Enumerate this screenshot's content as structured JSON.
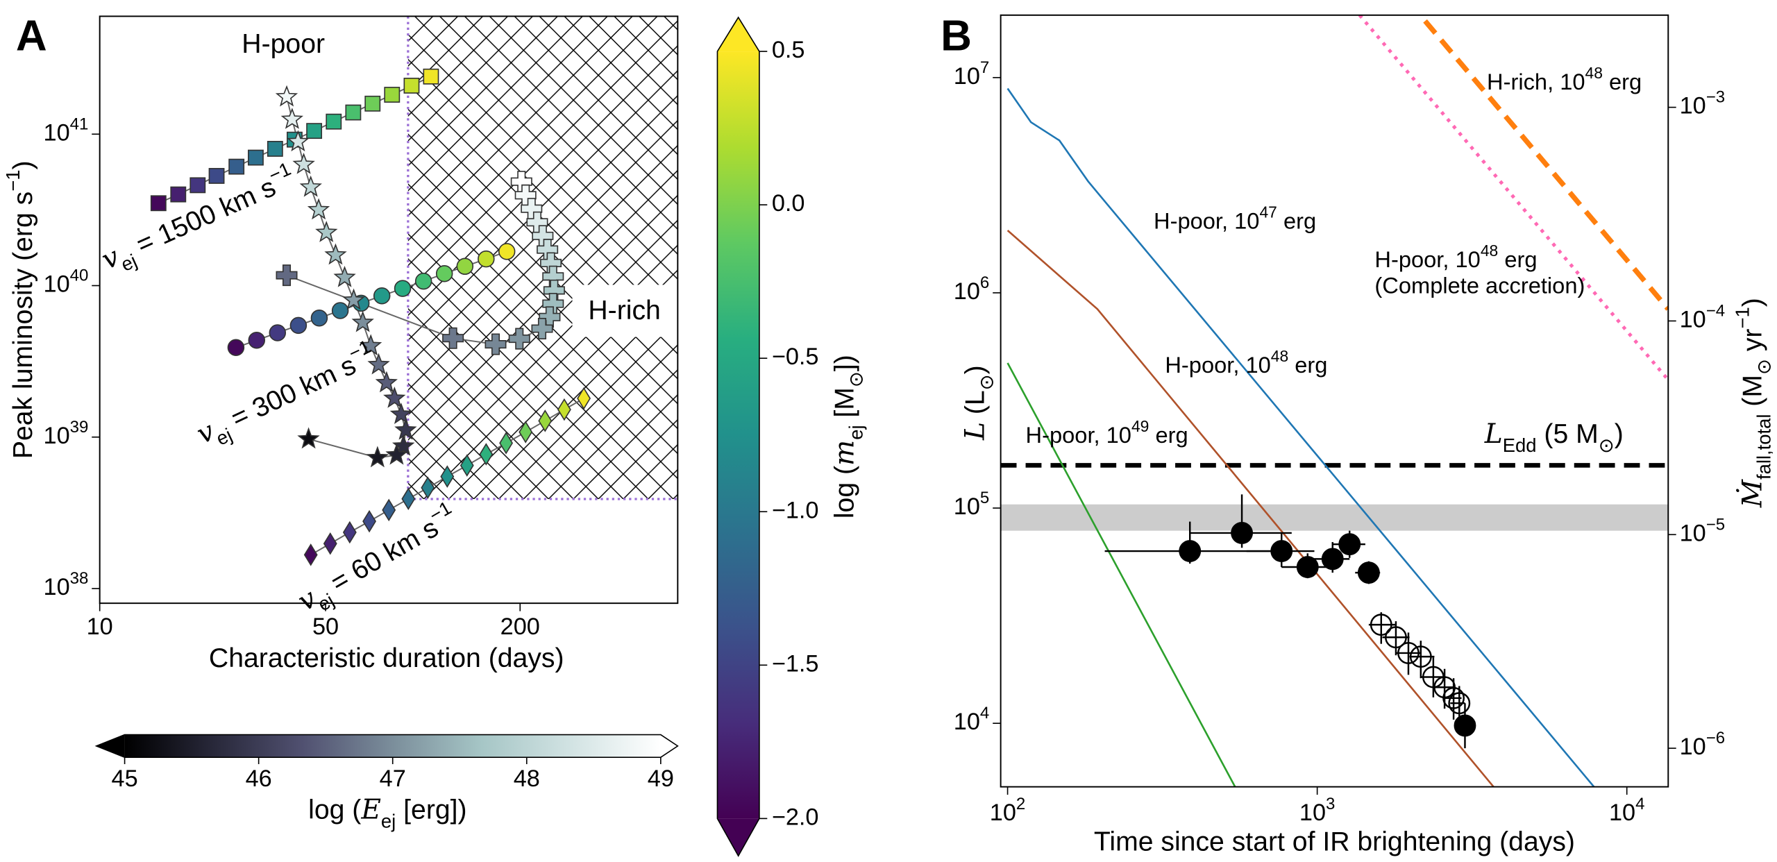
{
  "chart_data": [
    {
      "type": "scatter",
      "panel": "A",
      "xlabel": "Characteristic duration (days)",
      "ylabel": [
        {
          "t": "Peak luminosity (erg s"
        },
        {
          "t": "−1",
          "s": "sup"
        },
        {
          "t": ")"
        }
      ],
      "xscale": "log",
      "yscale": "log",
      "xlim": [
        10,
        615
      ],
      "ylim": [
        8e+37,
        6e+41
      ],
      "xticks": [
        10,
        50,
        200
      ],
      "yticks": [
        {
          "value": 1e+38,
          "label": [
            {
              "t": "10"
            },
            {
              "t": "38",
              "s": "sup"
            }
          ]
        },
        {
          "value": 1e+39,
          "label": [
            {
              "t": "10"
            },
            {
              "t": "39",
              "s": "sup"
            }
          ]
        },
        {
          "value": 1e+40,
          "label": [
            {
              "t": "10"
            },
            {
              "t": "40",
              "s": "sup"
            }
          ]
        },
        {
          "value": 1e+41,
          "label": [
            {
              "t": "10"
            },
            {
              "t": "41",
              "s": "sup"
            }
          ]
        }
      ],
      "hatch": {
        "xmin": 90,
        "ymin": 3.9e+38,
        "edge_color": "#9b6fd6"
      },
      "series": [
        {
          "marker": "square",
          "cmap": "viridis",
          "x": [
            15.2,
            17.5,
            20.1,
            23.0,
            26.5,
            30.4,
            34.9,
            40.1,
            46.1,
            53.0,
            60.9,
            69.9,
            80.3,
            92.3,
            106
          ],
          "values": [
            3.5e+40,
            4e+40,
            4.6e+40,
            5.3e+40,
            6.1e+40,
            7e+40,
            8e+40,
            9.2e+40,
            1.05e+41,
            1.21e+41,
            1.39e+41,
            1.59e+41,
            1.82e+41,
            2.09e+41,
            2.4e+41
          ],
          "c": [
            -1.95,
            -1.78,
            -1.61,
            -1.44,
            -1.26,
            -1.09,
            -0.92,
            -0.75,
            -0.58,
            -0.41,
            -0.24,
            -0.06,
            0.11,
            0.28,
            0.45
          ]
        },
        {
          "marker": "circle",
          "cmap": "viridis",
          "x": [
            26.4,
            30.6,
            35.5,
            41.2,
            47.8,
            55.5,
            64.4,
            74.7,
            86.6,
            100.5,
            116.6,
            135,
            157,
            182
          ],
          "values": [
            3.9e+39,
            4.36e+39,
            4.88e+39,
            5.46e+39,
            6.11e+39,
            6.84e+39,
            7.65e+39,
            8.56e+39,
            9.58e+39,
            1.07e+40,
            1.2e+40,
            1.34e+40,
            1.5e+40,
            1.68e+40
          ],
          "c": [
            -1.95,
            -1.77,
            -1.58,
            -1.4,
            -1.21,
            -1.03,
            -0.84,
            -0.66,
            -0.47,
            -0.29,
            -0.1,
            0.08,
            0.27,
            0.45
          ]
        },
        {
          "marker": "diamond",
          "cmap": "viridis",
          "x": [
            45,
            51.7,
            59.4,
            68.3,
            78.5,
            90.2,
            103.6,
            119,
            137,
            157,
            181,
            208,
            239,
            274,
            315
          ],
          "values": [
            1.67e+38,
            1.98e+38,
            2.35e+38,
            2.78e+38,
            3.3e+38,
            3.91e+38,
            4.63e+38,
            5.49e+38,
            6.5e+38,
            7.7e+38,
            9.13e+38,
            1.08e+39,
            1.28e+39,
            1.52e+39,
            1.8e+39
          ],
          "c": [
            -1.95,
            -1.78,
            -1.61,
            -1.44,
            -1.26,
            -1.09,
            -0.92,
            -0.75,
            -0.58,
            -0.41,
            -0.24,
            -0.06,
            0.11,
            0.28,
            0.45
          ]
        },
        {
          "marker": "star",
          "cmap": "bone",
          "x": [
            37.9,
            39.4,
            41.1,
            42.8,
            45.0,
            47.6,
            50.3,
            53.7,
            57.3,
            61.1,
            65.2,
            69.0,
            73.0,
            77.2,
            81.7,
            85.7,
            88.5,
            87.1,
            83.0,
            72.4,
            44.3
          ],
          "values": [
            1.76e+41,
            1.25e+41,
            8.9e+40,
            6.3e+40,
            4.46e+40,
            3.16e+40,
            2.24e+40,
            1.59e+40,
            1.13e+40,
            8e+39,
            5.7e+39,
            4e+39,
            3e+39,
            2.28e+39,
            1.8e+39,
            1.41e+39,
            1.11e+39,
            8.7e+38,
            7.6e+38,
            7.3e+38,
            9.7e+38
          ],
          "c": [
            48.8,
            48.62,
            48.44,
            48.26,
            48.08,
            47.9,
            47.72,
            47.54,
            47.36,
            47.18,
            47.0,
            46.82,
            46.64,
            46.46,
            46.28,
            46.1,
            45.92,
            45.74,
            45.56,
            45.38,
            45.2
          ]
        },
        {
          "marker": "plus",
          "cmap": "bone",
          "x": [
            202,
            208,
            217,
            226,
            235,
            243,
            249,
            253,
            255,
            253,
            247,
            234,
            199,
            168,
            124,
            37.9
          ],
          "values": [
            4.86e+40,
            3.95e+40,
            3.22e+40,
            2.62e+40,
            2.13e+40,
            1.73e+40,
            1.41e+40,
            1.15e+40,
            9.3e+39,
            7.6e+39,
            6.2e+39,
            5.2e+39,
            4.46e+39,
            4.1e+39,
            4.5e+39,
            1.17e+40
          ],
          "c": [
            49,
            48.84,
            48.68,
            48.52,
            48.36,
            48.2,
            48.04,
            47.88,
            47.72,
            47.56,
            47.4,
            47.24,
            47.08,
            46.92,
            46.76,
            46.6
          ]
        }
      ],
      "annotations": [
        {
          "text": "H-poor",
          "color": "#f39c1f"
        },
        {
          "text": "H-rich",
          "color": "#8b1010"
        },
        {
          "text": [
            {
              "t": "v",
              "s": "i"
            },
            {
              "t": "ej",
              "s": "sub"
            },
            {
              "t": " = 1500 km s"
            },
            {
              "t": "−1",
              "s": "sup"
            }
          ],
          "color": "#000000"
        },
        {
          "text": [
            {
              "t": "v",
              "s": "i"
            },
            {
              "t": "ej",
              "s": "sub"
            },
            {
              "t": " = 300 km s"
            },
            {
              "t": "−1",
              "s": "sup"
            }
          ],
          "color": "#000000"
        },
        {
          "text": [
            {
              "t": "v",
              "s": "i"
            },
            {
              "t": "ej",
              "s": "sub"
            },
            {
              "t": " = 60 km s"
            },
            {
              "t": "−1",
              "s": "sup"
            }
          ],
          "color": "#000000"
        }
      ],
      "colorbars": [
        {
          "cmap": "viridis",
          "orientation": "vertical",
          "lim": [
            -2,
            0.5
          ],
          "ticks": [
            0.5,
            {
              "value": 0,
              "label": "0.0"
            },
            {
              "value": -0.5,
              "label": "−0.5"
            },
            {
              "value": -1,
              "label": "−1.0"
            },
            {
              "value": -1.5,
              "label": "−1.5"
            },
            {
              "value": -2,
              "label": "−2.0"
            }
          ],
          "label": [
            {
              "t": "log ("
            },
            {
              "t": "m",
              "s": "i"
            },
            {
              "t": "ej",
              "s": "sub"
            },
            {
              "t": " [M"
            },
            {
              "t": "⊙",
              "s": "sub"
            },
            {
              "t": "])"
            }
          ]
        },
        {
          "cmap": "bone",
          "orientation": "horizontal",
          "lim": [
            45,
            49
          ],
          "ticks": [
            45,
            46,
            47,
            48,
            49
          ],
          "label": [
            {
              "t": "log ("
            },
            {
              "t": "E",
              "s": "i"
            },
            {
              "t": "ej",
              "s": "sub"
            },
            {
              "t": " [erg])"
            }
          ]
        }
      ]
    },
    {
      "type": "line",
      "panel": "B",
      "xlabel": "Time since start of IR brightening (days)",
      "ylabel": [
        {
          "t": "L",
          "s": "i"
        },
        {
          "t": " (L"
        },
        {
          "t": "⊙",
          "s": "sub"
        },
        {
          "t": ")"
        }
      ],
      "y2label": [
        {
          "t": "Ṁ",
          "s": "i"
        },
        {
          "t": "fall,total",
          "s": "sub"
        },
        {
          "t": " (M"
        },
        {
          "t": "⊙",
          "s": "sub"
        },
        {
          "t": " yr"
        },
        {
          "t": "−1",
          "s": "sup"
        },
        {
          "t": ")"
        }
      ],
      "xscale": "log",
      "yscale": "log",
      "y2scale": "log",
      "xlim": [
        95,
        13600
      ],
      "ylim": [
        5070,
        19500000.0
      ],
      "y2lim": [
        6.6e-07,
        0.0027
      ],
      "xticks": [
        {
          "value": 100,
          "label": [
            {
              "t": "10"
            },
            {
              "t": "2",
              "s": "sup"
            }
          ]
        },
        {
          "value": 1000,
          "label": [
            {
              "t": "10"
            },
            {
              "t": "3",
              "s": "sup"
            }
          ]
        },
        {
          "value": 10000,
          "label": [
            {
              "t": "10"
            },
            {
              "t": "4",
              "s": "sup"
            }
          ]
        }
      ],
      "yticks": [
        {
          "value": 10000,
          "label": [
            {
              "t": "10"
            },
            {
              "t": "4",
              "s": "sup"
            }
          ]
        },
        {
          "value": 100000,
          "label": [
            {
              "t": "10"
            },
            {
              "t": "5",
              "s": "sup"
            }
          ]
        },
        {
          "value": 1000000,
          "label": [
            {
              "t": "10"
            },
            {
              "t": "6",
              "s": "sup"
            }
          ]
        },
        {
          "value": 10000000,
          "label": [
            {
              "t": "10"
            },
            {
              "t": "7",
              "s": "sup"
            }
          ]
        }
      ],
      "y2ticks": [
        {
          "value": 1e-06,
          "label": [
            {
              "t": "10"
            },
            {
              "t": "−6",
              "s": "sup"
            }
          ]
        },
        {
          "value": 1e-05,
          "label": [
            {
              "t": "10"
            },
            {
              "t": "−5",
              "s": "sup"
            }
          ]
        },
        {
          "value": 0.0001,
          "label": [
            {
              "t": "10"
            },
            {
              "t": "−4",
              "s": "sup"
            }
          ]
        },
        {
          "value": 0.001,
          "label": [
            {
              "t": "10"
            },
            {
              "t": "−3",
              "s": "sup"
            }
          ]
        }
      ],
      "series": [
        {
          "name": [
            {
              "t": "H-poor, 10"
            },
            {
              "t": "47",
              "s": "sup"
            },
            {
              "t": " erg"
            }
          ],
          "color": "#1f77b4",
          "style": "solid",
          "x": [
            100,
            119,
            147,
            182,
            200,
            7830
          ],
          "values": [
            8900000.0,
            6200000.0,
            5100000.0,
            3300000.0,
            2800000.0,
            5070
          ]
        },
        {
          "name": [
            {
              "t": "H-poor, 10"
            },
            {
              "t": "48",
              "s": "sup"
            },
            {
              "t": " erg"
            }
          ],
          "color": "#b0522a",
          "style": "solid",
          "x": [
            100,
            195,
            3710
          ],
          "values": [
            1950000.0,
            840000.0,
            5070
          ]
        },
        {
          "name": [
            {
              "t": "H-poor, 10"
            },
            {
              "t": "49",
              "s": "sup"
            },
            {
              "t": " erg"
            }
          ],
          "color": "#2ca02c",
          "style": "solid",
          "x": [
            100,
            543
          ],
          "values": [
            472000.0,
            5070
          ]
        },
        {
          "name": [
            {
              "t": "H-poor, 10"
            },
            {
              "t": "48",
              "s": "sup"
            },
            {
              "t": " erg"
            }
          ],
          "note": "(Complete accretion)",
          "color": "#ff69b4",
          "style": "dotted",
          "x": [
            1370,
            13600
          ],
          "values": [
            19500000.0,
            394000.0
          ]
        },
        {
          "name": [
            {
              "t": "H-rich, 10"
            },
            {
              "t": "48",
              "s": "sup"
            },
            {
              "t": " erg"
            }
          ],
          "color": "#ff7f0e",
          "style": "dashed",
          "x": [
            2230,
            13600
          ],
          "values": [
            18300000.0,
            840000.0
          ]
        }
      ],
      "hlines": [
        {
          "label": [
            {
              "t": "L",
              "s": "i"
            },
            {
              "t": "Edd",
              "s": "sub"
            },
            {
              "t": " (5 M"
            },
            {
              "t": "⊙",
              "s": "sub"
            },
            {
              "t": ")"
            }
          ],
          "value": 158000,
          "color": "#000000",
          "style": "dashed"
        }
      ],
      "band": {
        "values": [
          78500,
          104000
        ],
        "color": "#cccccc"
      },
      "points": [
        {
          "fill": "#000000",
          "x": [
            388,
            571,
            767,
            931,
            1121,
            1272,
            1467,
            3000
          ],
          "values": [
            63100,
            76600,
            63100,
            53200,
            58000,
            67900,
            50100,
            9760
          ],
          "xerr": [
            [
              206,
              761
            ],
            [
              388,
              827
            ],
            [
              591,
              979
            ],
            [
              767,
              1121
            ],
            [
              931,
              1272
            ],
            [
              1121,
              1430
            ],
            [
              1326,
              1596
            ],
            [
              2852,
              3183
            ]
          ],
          "yerr": [
            [
              55200,
              86500
            ],
            [
              65400,
              115700
            ],
            [
              53200,
              76600
            ],
            [
              47200,
              61600
            ],
            [
              50100,
              69500
            ],
            [
              58700,
              78500
            ],
            [
              44400,
              56600
            ],
            [
              7660,
              12400
            ]
          ]
        },
        {
          "fill": "none",
          "x": [
            1609,
            1795,
            1970,
            2160,
            2371,
            2578,
            2757,
            2876
          ],
          "values": [
            28700,
            25100,
            21200,
            20400,
            16400,
            14700,
            13100,
            12400
          ],
          "xerr": [
            [
              1467,
              1795
            ],
            [
              1623,
              1986
            ],
            [
              1795,
              2160
            ],
            [
              1986,
              2390
            ],
            [
              2160,
              2600
            ],
            [
              2371,
              2757
            ],
            [
              2578,
              2925
            ],
            [
              2689,
              3000
            ]
          ],
          "yerr": [
            [
              23400,
              32800
            ],
            [
              20700,
              29800
            ],
            [
              16800,
              26400
            ],
            [
              16200,
              24200
            ],
            [
              13200,
              20200
            ],
            [
              11700,
              17900
            ],
            [
              10400,
              16200
            ],
            [
              9760,
              14900
            ]
          ]
        }
      ]
    }
  ]
}
